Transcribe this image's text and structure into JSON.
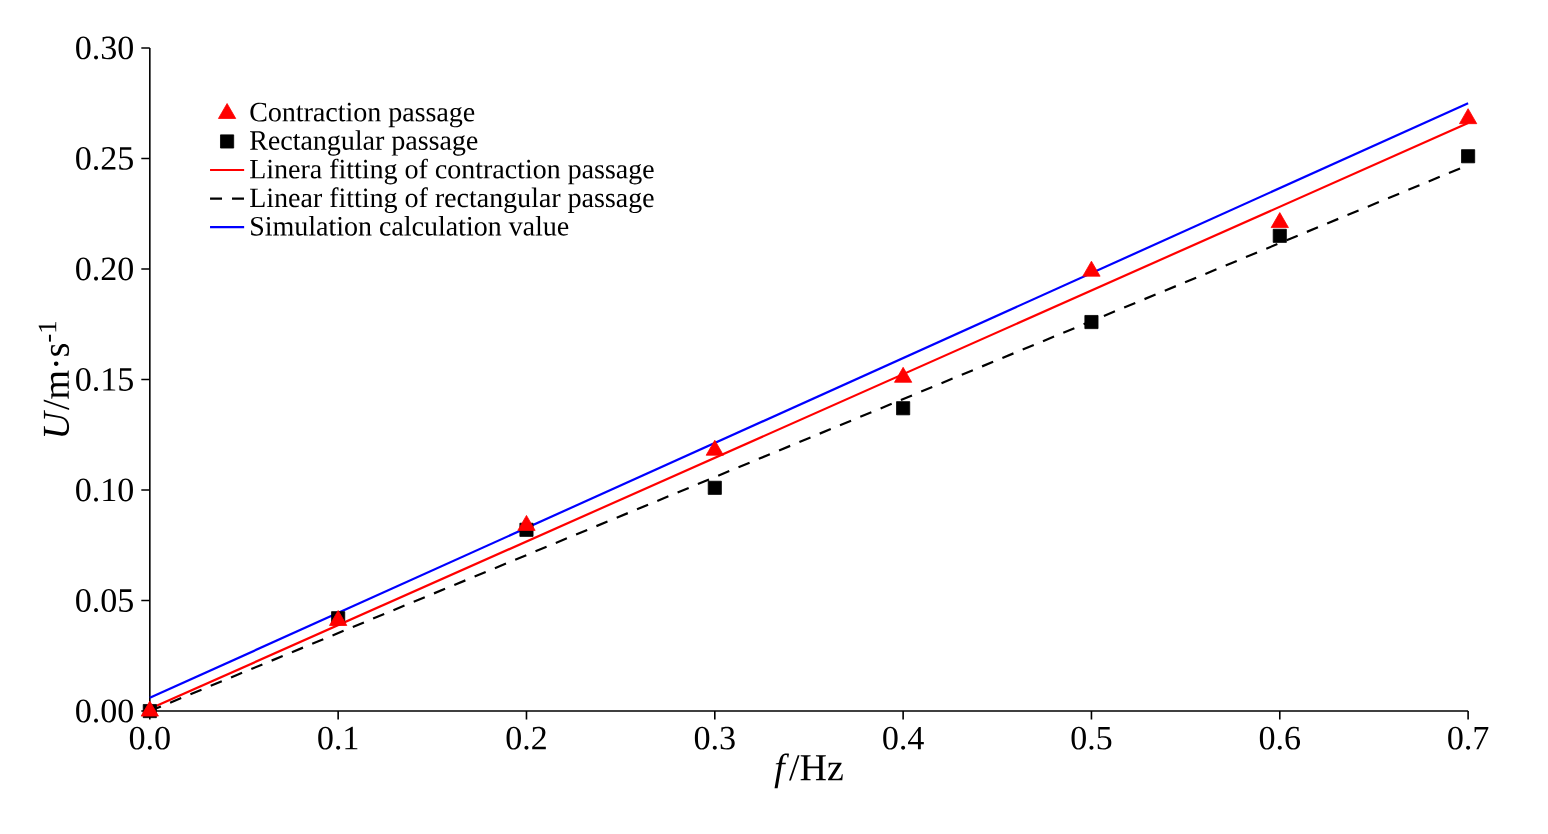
{
  "chart_data": {
    "type": "scatter",
    "xlabel": "*f*/Hz",
    "ylabel": "*U*/m·s$^{-1}$",
    "xlim": [
      0,
      0.7
    ],
    "ylim": [
      0,
      0.3
    ],
    "xticks": [
      {
        "value": 0,
        "label": "0.0"
      },
      0.1,
      0.2,
      0.3,
      0.4,
      0.5,
      0.6,
      0.7
    ],
    "yticks": [
      {
        "value": 0,
        "label": "0.00"
      },
      0.05,
      {
        "value": 0.1,
        "label": "0.10"
      },
      0.15,
      {
        "value": 0.2,
        "label": "0.20"
      },
      0.25,
      {
        "value": 0.3,
        "label": "0.30"
      }
    ],
    "legend": "top left",
    "grid": false,
    "series": [
      {
        "name": "Contraction passage",
        "type": "scatter",
        "marker": "triangle",
        "color": "#ff0000",
        "x": [
          0,
          0.1,
          0.2,
          0.3,
          0.4,
          0.5,
          0.6,
          0.7
        ],
        "values": [
          0,
          0.041,
          0.084,
          0.118,
          0.151,
          0.199,
          0.221,
          0.268
        ]
      },
      {
        "name": "Rectangular passage",
        "type": "scatter",
        "marker": "square",
        "color": "#000000",
        "x": [
          0,
          0.1,
          0.2,
          0.3,
          0.4,
          0.5,
          0.6,
          0.7
        ],
        "values": [
          0,
          0.042,
          0.082,
          0.101,
          0.137,
          0.176,
          0.215,
          0.251
        ]
      },
      {
        "name": "Linera fitting of contraction passage",
        "type": "line",
        "line_style": "solid",
        "color": "#ff0000",
        "x": [
          0,
          0.7
        ],
        "values": [
          0.001,
          0.266
        ]
      },
      {
        "name": "Linear fitting of rectangular passage",
        "type": "line",
        "line_style": "dashed",
        "color": "#000000",
        "x": [
          0,
          0.7
        ],
        "values": [
          0,
          0.247
        ]
      },
      {
        "name": "Simulation calculation value",
        "type": "line",
        "line_style": "solid",
        "color": "#0000ff",
        "x": [
          0,
          0.7
        ],
        "values": [
          0.006,
          0.275
        ]
      }
    ]
  }
}
